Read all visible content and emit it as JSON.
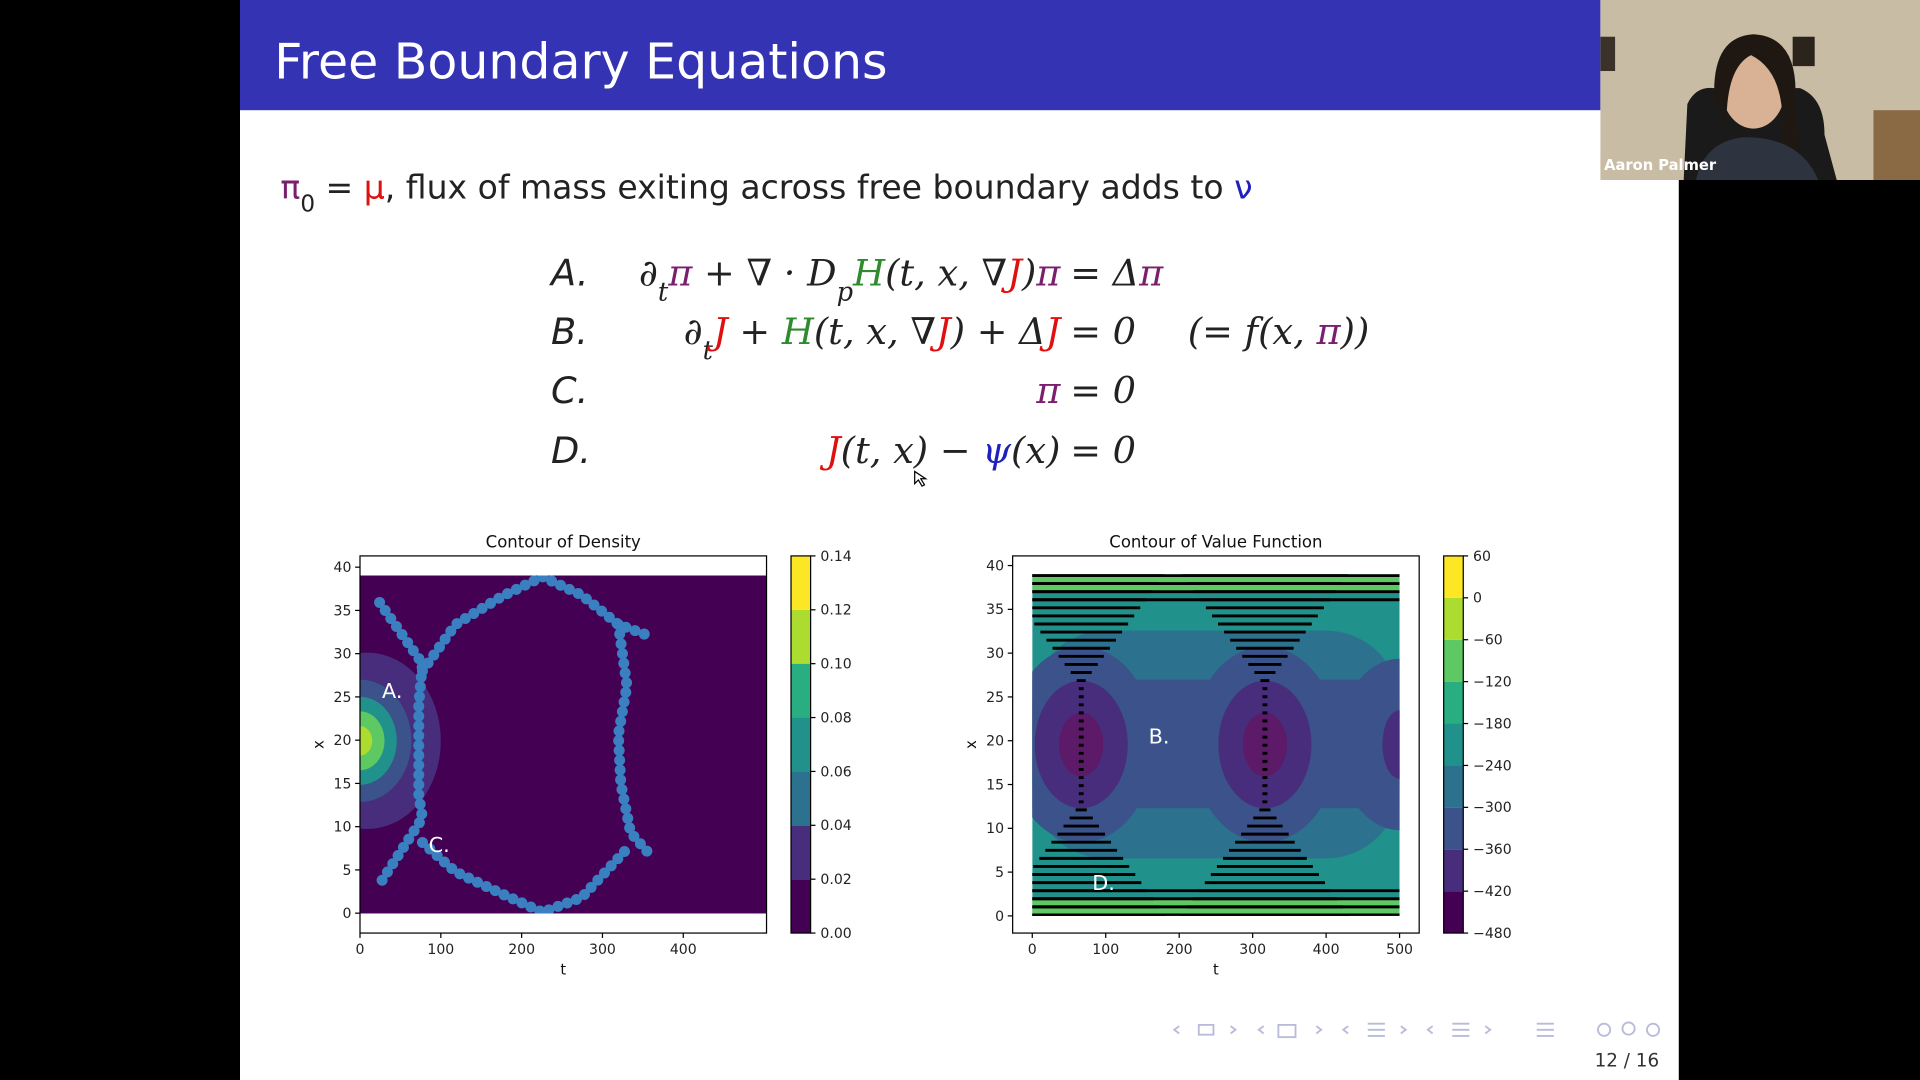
{
  "header": {
    "title": "Free Boundary Equations"
  },
  "intro": [
    {
      "text": "π",
      "color": "#7a1f6e"
    },
    {
      "text": "0",
      "color": "#222222",
      "sub": true
    },
    {
      "text": " = ",
      "color": "#222222"
    },
    {
      "text": "μ",
      "color": "#e01010"
    },
    {
      "text": ", flux of mass exiting across free boundary adds to ",
      "color": "#222222"
    },
    {
      "text": "ν",
      "color": "#2020c0"
    }
  ],
  "equations": [
    {
      "label": "A.",
      "lhs": [
        {
          "text": "∂",
          "color": "#222222"
        },
        {
          "text": "t",
          "color": "#222222",
          "sub": true
        },
        {
          "text": "π",
          "color": "#7a1f6e"
        },
        {
          "text": " + ∇ · D",
          "color": "#222222"
        },
        {
          "text": "p",
          "color": "#222222",
          "sub": true
        },
        {
          "text": "H",
          "color": "#2e8b2e"
        },
        {
          "text": "(t, x, ∇",
          "color": "#222222"
        },
        {
          "text": "J",
          "color": "#e01010"
        },
        {
          "text": ")",
          "color": "#222222"
        },
        {
          "text": "π",
          "color": "#7a1f6e"
        }
      ],
      "rhs": [
        {
          "text": "= Δ",
          "color": "#222222"
        },
        {
          "text": "π",
          "color": "#7a1f6e"
        }
      ]
    },
    {
      "label": "B.",
      "lhs": [
        {
          "text": "∂",
          "color": "#222222"
        },
        {
          "text": "t",
          "color": "#222222",
          "sub": true
        },
        {
          "text": "J",
          "color": "#e01010"
        },
        {
          "text": " + ",
          "color": "#222222"
        },
        {
          "text": "H",
          "color": "#2e8b2e"
        },
        {
          "text": "(t, x, ∇",
          "color": "#222222"
        },
        {
          "text": "J",
          "color": "#e01010"
        },
        {
          "text": ") + Δ",
          "color": "#222222"
        },
        {
          "text": "J",
          "color": "#e01010"
        }
      ],
      "rhs": [
        {
          "text": "= 0",
          "color": "#222222"
        }
      ],
      "note": [
        {
          "text": "(= f(x, ",
          "color": "#222222"
        },
        {
          "text": "π",
          "color": "#7a1f6e"
        },
        {
          "text": "))",
          "color": "#222222"
        }
      ]
    },
    {
      "label": "C.",
      "lhs": [
        {
          "text": "π",
          "color": "#7a1f6e"
        }
      ],
      "rhs": [
        {
          "text": "= 0",
          "color": "#222222"
        }
      ]
    },
    {
      "label": "D.",
      "lhs": [
        {
          "text": "J",
          "color": "#e01010"
        },
        {
          "text": "(t, x) − ",
          "color": "#222222"
        },
        {
          "text": "ψ",
          "color": "#2020c0"
        },
        {
          "text": "(x)",
          "color": "#222222"
        }
      ],
      "rhs": [
        {
          "text": "= 0",
          "color": "#222222"
        }
      ]
    }
  ],
  "figures": [
    {
      "title": "Contour of Density",
      "xlabel": "t",
      "ylabel": "x",
      "xlim": [
        0,
        503
      ],
      "ylim": [
        -2.3,
        41.3
      ],
      "xticks": [
        0,
        100,
        200,
        300,
        400
      ],
      "yticks": [
        0,
        5,
        10,
        15,
        20,
        25,
        30,
        35,
        40
      ],
      "colormap": "viridis",
      "colorbar": {
        "lim": [
          0,
          0.14
        ],
        "ticks": [
          {
            "value": 0,
            "label": "0.00"
          },
          0.02,
          0.04,
          0.06,
          0.08,
          {
            "value": 0.1,
            "label": "0.10"
          },
          0.12,
          0.14
        ]
      },
      "annotations": [
        "A.",
        "C."
      ]
    },
    {
      "title": "Contour of Value Function",
      "xlabel": "t",
      "ylabel": "x",
      "xlim": [
        -26.7,
        526.7
      ],
      "ylim": [
        -1.96,
        41.1
      ],
      "xticks": [
        0,
        100,
        200,
        300,
        400,
        500
      ],
      "yticks": [
        0,
        5,
        10,
        15,
        20,
        25,
        30,
        35,
        40
      ],
      "colormap": "viridis",
      "colorbar": {
        "lim": [
          -480,
          60
        ],
        "ticks": [
          {
            "value": -480,
            "label": "−480"
          },
          {
            "value": -420,
            "label": "−420"
          },
          {
            "value": -360,
            "label": "−360"
          },
          {
            "value": -300,
            "label": "−300"
          },
          {
            "value": -240,
            "label": "−240"
          },
          {
            "value": -180,
            "label": "−180"
          },
          {
            "value": -120,
            "label": "−120"
          },
          {
            "value": -60,
            "label": "−60"
          },
          0,
          60
        ]
      },
      "annotations": [
        "B.",
        "D."
      ]
    }
  ],
  "footer": {
    "page": "12 / 16"
  },
  "webcam": {
    "name": "Aaron Palmer"
  }
}
